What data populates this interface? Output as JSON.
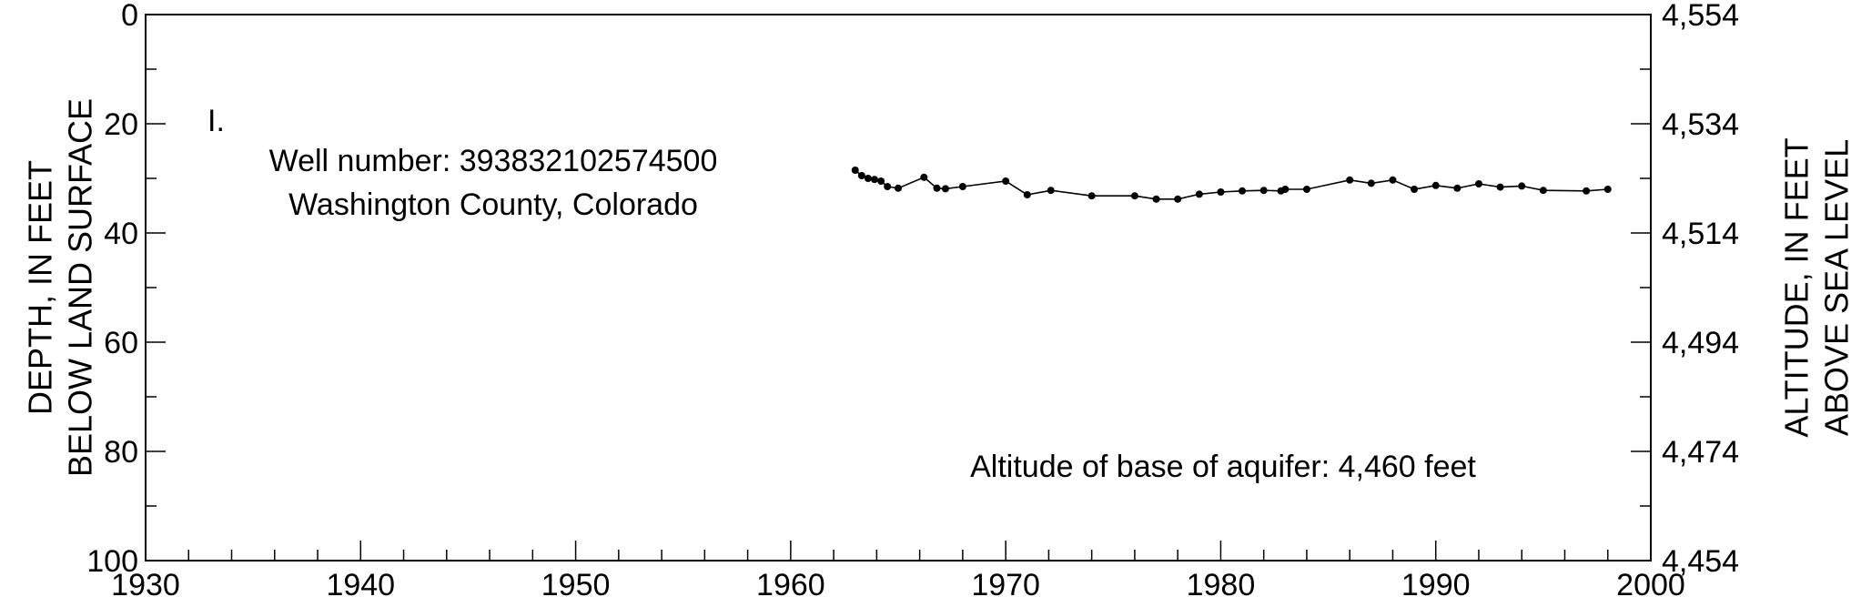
{
  "chart_data": {
    "type": "line",
    "panel_label": "I.",
    "annotations": {
      "well_number": "Well number: 393832102574500",
      "location": "Washington County, Colorado",
      "base_altitude": "Altitude of base of aquifer: 4,460 feet"
    },
    "x_axis": {
      "range": [
        1930,
        2000
      ],
      "ticks": [
        "1930",
        "1940",
        "1950",
        "1960",
        "1970",
        "1980",
        "1990",
        "2000"
      ],
      "tick_values": [
        1930,
        1940,
        1950,
        1960,
        1970,
        1980,
        1990,
        2000
      ],
      "minor_step": 2
    },
    "y_axis_left": {
      "label_line1": "DEPTH, IN FEET",
      "label_line2": "BELOW LAND SURFACE",
      "range": [
        0,
        100
      ],
      "inverted": true,
      "ticks": [
        "0",
        "20",
        "40",
        "60",
        "80",
        "100"
      ],
      "tick_values": [
        0,
        20,
        40,
        60,
        80,
        100
      ],
      "minor_step": 10
    },
    "y_axis_right": {
      "label_line1": "ALTITUDE, IN FEET",
      "label_line2": "ABOVE SEA LEVEL",
      "ticks": [
        "4,554",
        "4,534",
        "4,514",
        "4,494",
        "4,474",
        "4,454"
      ],
      "tick_values": [
        4554,
        4534,
        4514,
        4494,
        4474,
        4454
      ]
    },
    "series": [
      {
        "x": [
          1963.0,
          1963.3,
          1963.6,
          1963.9,
          1964.2,
          1964.5,
          1965.0,
          1966.2,
          1966.8,
          1967.2,
          1968.0,
          1970.0,
          1971.0,
          1972.1,
          1974.0,
          1976.0,
          1977.0,
          1978.0,
          1979.0,
          1980.0,
          1981.0,
          1982.0,
          1982.8,
          1983.0,
          1984.0,
          1986.0,
          1987.0,
          1988.0,
          1989.0,
          1990.0,
          1991.0,
          1992.0,
          1993.0,
          1994.0,
          1995.0,
          1997.0,
          1998.0
        ],
        "y": [
          28.5,
          29.5,
          30.0,
          30.2,
          30.5,
          31.5,
          31.8,
          29.8,
          31.8,
          31.9,
          31.5,
          30.5,
          33.0,
          32.2,
          33.2,
          33.2,
          33.8,
          33.8,
          32.9,
          32.5,
          32.3,
          32.2,
          32.3,
          32.0,
          32.0,
          30.3,
          30.9,
          30.3,
          32.0,
          31.3,
          31.8,
          31.0,
          31.6,
          31.4,
          32.2,
          32.3,
          32.0
        ]
      }
    ],
    "grid": false,
    "line_color": "#000000",
    "marker_color": "#000000"
  }
}
